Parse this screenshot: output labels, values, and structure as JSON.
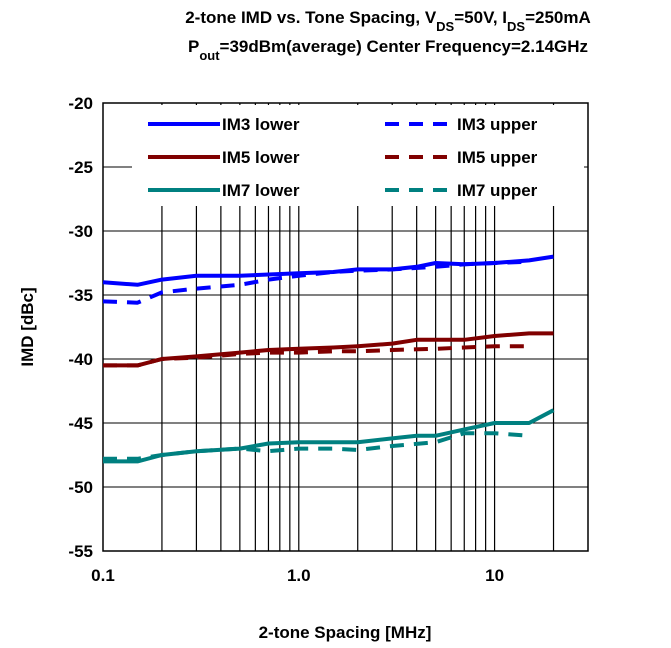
{
  "chart_data": {
    "type": "line",
    "title_line1_parts": [
      {
        "text": "2-tone IMD vs. Tone Spacing, V",
        "sub": false
      },
      {
        "text": "DS",
        "sub": true
      },
      {
        "text": "=50V, I",
        "sub": false
      },
      {
        "text": "DS",
        "sub": true
      },
      {
        "text": "=250mA",
        "sub": false
      }
    ],
    "title_line2_parts": [
      {
        "text": "P",
        "sub": false
      },
      {
        "text": "out",
        "sub": true
      },
      {
        "text": "=39dBm(average) Center Frequency=2.14GHz",
        "sub": false
      }
    ],
    "xlabel": "2-tone Spacing [MHz]",
    "ylabel": "IMD [dBc]",
    "x_scale": "log",
    "xlim": [
      0.1,
      30
    ],
    "ylim": [
      -55,
      -20
    ],
    "x_ticks": [
      0.1,
      1.0,
      10
    ],
    "x_tick_labels": [
      "0.1",
      "1.0",
      "10"
    ],
    "y_ticks": [
      -55,
      -50,
      -45,
      -40,
      -35,
      -30,
      -25,
      -20
    ],
    "y_tick_labels": [
      "-55",
      "-50",
      "-45",
      "-40",
      "-35",
      "-30",
      "-25",
      "-20"
    ],
    "grid": true,
    "legend_position": "top",
    "series": [
      {
        "name": "IM3 lower",
        "color": "#0000ff",
        "dash": "solid",
        "x": [
          0.1,
          0.15,
          0.2,
          0.3,
          0.5,
          0.7,
          1.0,
          1.5,
          2.0,
          3.0,
          4.0,
          5.0,
          7.0,
          10,
          15,
          20
        ],
        "y": [
          -34.0,
          -34.2,
          -33.8,
          -33.5,
          -33.5,
          -33.4,
          -33.3,
          -33.2,
          -33.0,
          -33.0,
          -32.8,
          -32.5,
          -32.6,
          -32.5,
          -32.3,
          -32.0
        ]
      },
      {
        "name": "IM3 upper",
        "color": "#0000ff",
        "dash": "dashed",
        "x": [
          0.1,
          0.15,
          0.2,
          0.3,
          0.5,
          0.7,
          1.0,
          1.5,
          2.0,
          3.0,
          5.0,
          7.0,
          10,
          15
        ],
        "y": [
          -35.5,
          -35.6,
          -34.8,
          -34.5,
          -34.2,
          -33.8,
          -33.5,
          -33.2,
          -33.1,
          -33.0,
          -32.8,
          -32.6,
          -32.5,
          -32.4
        ]
      },
      {
        "name": "IM5 lower",
        "color": "#800000",
        "dash": "solid",
        "x": [
          0.1,
          0.15,
          0.2,
          0.3,
          0.5,
          0.7,
          1.0,
          1.5,
          2.0,
          3.0,
          4.0,
          5.0,
          7.0,
          10,
          15,
          20
        ],
        "y": [
          -40.5,
          -40.5,
          -40.0,
          -39.8,
          -39.5,
          -39.3,
          -39.2,
          -39.1,
          -39.0,
          -38.8,
          -38.5,
          -38.5,
          -38.5,
          -38.2,
          -38.0,
          -38.0
        ]
      },
      {
        "name": "IM5 upper",
        "color": "#800000",
        "dash": "dashed",
        "x": [
          0.1,
          0.15,
          0.2,
          0.3,
          0.5,
          0.7,
          1.0,
          1.5,
          2.0,
          3.0,
          5.0,
          7.0,
          10,
          15
        ],
        "y": [
          -40.5,
          -40.5,
          -40.0,
          -39.9,
          -39.6,
          -39.5,
          -39.5,
          -39.4,
          -39.4,
          -39.3,
          -39.2,
          -39.1,
          -39.0,
          -39.0
        ]
      },
      {
        "name": "IM7 lower",
        "color": "#008080",
        "dash": "solid",
        "x": [
          0.1,
          0.15,
          0.2,
          0.3,
          0.5,
          0.7,
          1.0,
          1.5,
          2.0,
          3.0,
          4.0,
          5.0,
          7.0,
          10,
          15,
          20
        ],
        "y": [
          -48.0,
          -48.0,
          -47.5,
          -47.2,
          -47.0,
          -46.6,
          -46.5,
          -46.5,
          -46.5,
          -46.2,
          -46.0,
          -46.0,
          -45.5,
          -45.0,
          -45.0,
          -44.0
        ]
      },
      {
        "name": "IM7 upper",
        "color": "#008080",
        "dash": "dashed",
        "x": [
          0.1,
          0.15,
          0.2,
          0.3,
          0.5,
          0.7,
          1.0,
          1.5,
          2.0,
          3.0,
          5.0,
          7.0,
          10,
          15
        ],
        "y": [
          -47.8,
          -47.8,
          -47.5,
          -47.2,
          -47.0,
          -47.2,
          -47.0,
          -47.0,
          -47.1,
          -46.8,
          -46.5,
          -45.8,
          -45.8,
          -46.0
        ]
      }
    ]
  }
}
